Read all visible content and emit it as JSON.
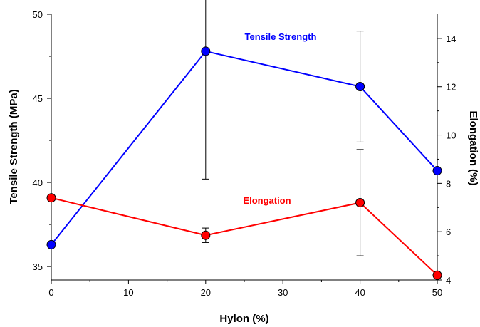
{
  "chart_data": {
    "type": "line",
    "title": "",
    "xlabel": "Hylon (%)",
    "ylabel": "Tensile Strength (MPa)",
    "y2label": "Elongation (%)",
    "x": [
      0,
      20,
      40,
      50
    ],
    "xlim": [
      0,
      50
    ],
    "ylim": [
      34.2,
      50
    ],
    "y2lim": [
      4,
      15
    ],
    "xticks": [
      "0",
      "10",
      "20",
      "30",
      "40",
      "50"
    ],
    "yticks": [
      "35",
      "40",
      "45",
      "50"
    ],
    "y2ticks": [
      "4",
      "6",
      "8",
      "10",
      "12",
      "14"
    ],
    "grid": false,
    "series": [
      {
        "name": "Tensile Strength",
        "axis": "left",
        "color": "#0000ff",
        "values": [
          36.3,
          47.8,
          45.7,
          40.7
        ],
        "error": [
          0,
          7.6,
          3.3,
          0
        ]
      },
      {
        "name": "Elongation",
        "axis": "right",
        "color": "#ff0000",
        "values": [
          7.4,
          5.85,
          7.2,
          4.2
        ],
        "error": [
          0,
          0.3,
          2.2,
          0
        ]
      }
    ]
  }
}
